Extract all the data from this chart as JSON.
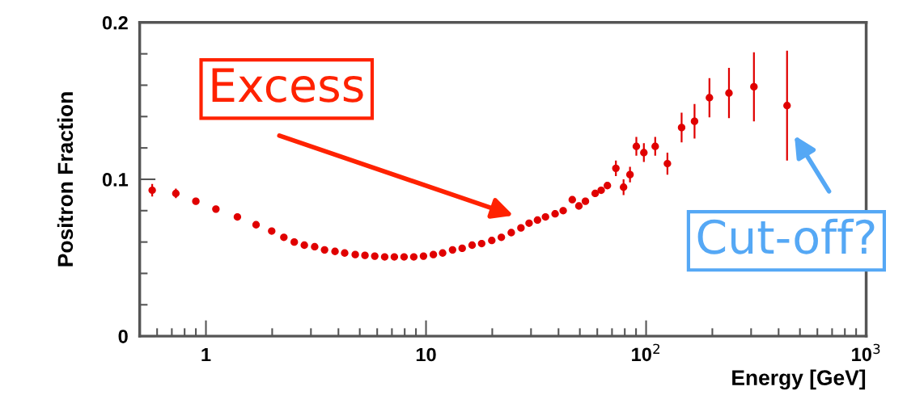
{
  "chart_data": {
    "type": "scatter",
    "xlabel": "Energy [GeV]",
    "ylabel": "Positron Fraction",
    "log": "x",
    "xlim": [
      0.5,
      1000
    ],
    "xticks": [
      1,
      10,
      {
        "value": 100,
        "label": "10$^{2}$"
      },
      {
        "value": 1000,
        "label": "10$^{3}$"
      }
    ],
    "ylim": [
      0,
      0.2
    ],
    "yticks": [
      0,
      0.1,
      0.2
    ],
    "grid": false,
    "marker": "circle",
    "series": [
      {
        "color": "#e00000",
        "x": [
          0.57,
          0.73,
          0.9,
          1.11,
          1.39,
          1.69,
          1.99,
          2.26,
          2.52,
          2.8,
          3.12,
          3.46,
          3.86,
          4.27,
          4.77,
          5.28,
          5.85,
          6.49,
          7.18,
          7.95,
          8.8,
          9.74,
          10.8,
          11.9,
          13.2,
          14.6,
          16.2,
          17.9,
          19.9,
          22.0,
          24.4,
          27.0,
          29.4,
          32.1,
          34.9,
          38.6,
          42.0,
          46.2,
          49.5,
          53,
          58.7,
          62.5,
          66.7,
          72.9,
          79,
          84.5,
          90.3,
          97.7,
          110,
          125,
          145,
          166,
          194,
          238,
          309,
          437
        ],
        "values": [
          0.093,
          0.091,
          0.086,
          0.081,
          0.076,
          0.071,
          0.067,
          0.063,
          0.06,
          0.058,
          0.057,
          0.055,
          0.054,
          0.053,
          0.052,
          0.0515,
          0.051,
          0.0505,
          0.0505,
          0.0505,
          0.0505,
          0.051,
          0.052,
          0.053,
          0.055,
          0.056,
          0.058,
          0.059,
          0.061,
          0.063,
          0.066,
          0.069,
          0.072,
          0.074,
          0.076,
          0.078,
          0.08,
          0.087,
          0.083,
          0.086,
          0.091,
          0.093,
          0.096,
          0.107,
          0.095,
          0.103,
          0.121,
          0.117,
          0.121,
          0.11,
          0.133,
          0.137,
          0.152,
          0.155,
          0.159,
          0.147
        ],
        "errors": [
          0.004,
          0.003,
          null,
          null,
          null,
          null,
          null,
          null,
          null,
          null,
          null,
          null,
          null,
          null,
          null,
          null,
          null,
          null,
          null,
          null,
          null,
          null,
          null,
          null,
          null,
          null,
          null,
          null,
          null,
          null,
          null,
          null,
          null,
          null,
          null,
          null,
          null,
          null,
          null,
          null,
          null,
          null,
          null,
          0.005,
          0.005,
          0.005,
          0.006,
          0.006,
          0.006,
          0.007,
          0.0095,
          0.011,
          0.0125,
          0.016,
          0.022,
          0.035
        ]
      }
    ],
    "annotations": [
      "Excess",
      "Cut-off?"
    ]
  }
}
